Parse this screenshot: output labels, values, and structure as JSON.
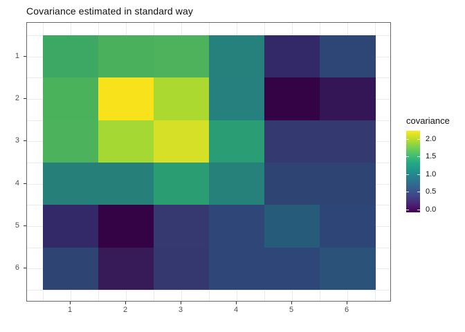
{
  "chart_data": {
    "type": "heatmap",
    "title": "Covariance estimated in standard way",
    "xlabel": "",
    "ylabel": "",
    "x_ticks": [
      "1",
      "2",
      "3",
      "4",
      "5",
      "6"
    ],
    "y_ticks": [
      "1",
      "2",
      "3",
      "4",
      "5",
      "6"
    ],
    "grid": true,
    "value_range": [
      -0.1,
      2.2
    ],
    "values": [
      [
        1.4,
        1.5,
        1.5,
        0.95,
        0.2,
        0.45
      ],
      [
        1.5,
        2.2,
        1.9,
        0.95,
        -0.1,
        0.05
      ],
      [
        1.5,
        1.85,
        2.05,
        1.25,
        0.3,
        0.3
      ],
      [
        0.95,
        0.95,
        1.25,
        1.0,
        0.45,
        0.45
      ],
      [
        0.2,
        -0.1,
        0.3,
        0.5,
        0.7,
        0.45
      ],
      [
        0.45,
        0.05,
        0.3,
        0.5,
        0.5,
        0.6
      ]
    ],
    "colors": [
      [
        "#3da863",
        "#4bb05c",
        "#4eb15b",
        "#26807c",
        "#332968",
        "#2e4676"
      ],
      [
        "#4bb25c",
        "#f8e21c",
        "#abd930",
        "#26807d",
        "#330345",
        "#341556"
      ],
      [
        "#4cb25c",
        "#a6d834",
        "#d6e027",
        "#2a9d74",
        "#343a70",
        "#343a70"
      ],
      [
        "#267f79",
        "#267f79",
        "#2b9d73",
        "#26817b",
        "#2e4574",
        "#2e4574"
      ],
      [
        "#332968",
        "#330345",
        "#35396f",
        "#2f4678",
        "#265c7a",
        "#2e4677"
      ],
      [
        "#2e4574",
        "#371a58",
        "#34386e",
        "#2f4778",
        "#2f4778",
        "#2b537a"
      ]
    ],
    "legend": {
      "title": "covariance",
      "position": "right",
      "ticks": [
        "2.0",
        "1.5",
        "1.0",
        "0.5",
        "0.0"
      ],
      "tick_positions_pct": [
        9.75,
        31.36,
        52.97,
        74.58,
        96.19
      ],
      "gradient_top_to_bottom": [
        "#fde725",
        "#bddf26",
        "#7ad151",
        "#44bf70",
        "#22a884",
        "#21918c",
        "#2a788e",
        "#355f8d",
        "#414487",
        "#482475",
        "#440154"
      ]
    },
    "style": {
      "panel_border": "#666666",
      "gridline": "#ebebeb",
      "axis_text": "#4d4d4d",
      "tick_mark": "#333333",
      "title_color": "#111111",
      "background": "#ffffff"
    }
  }
}
